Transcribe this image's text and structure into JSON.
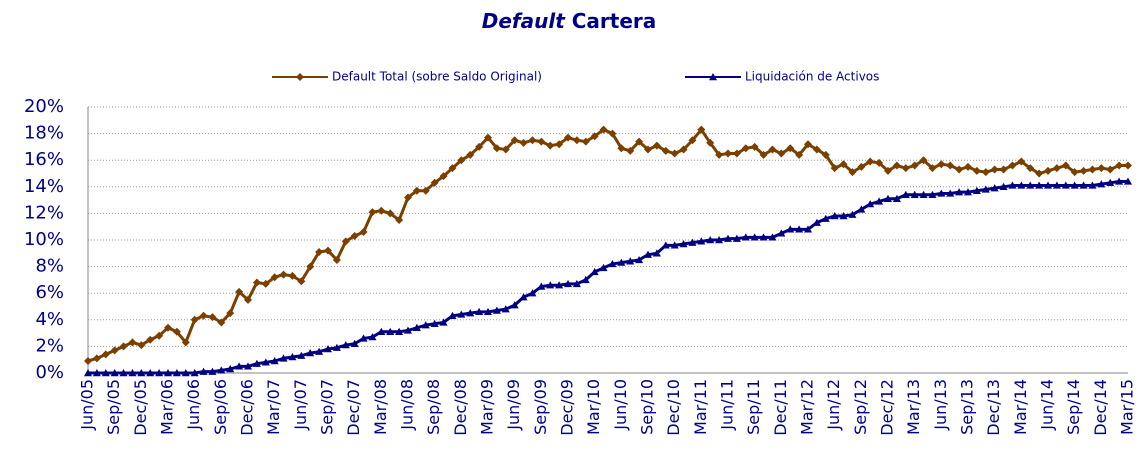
{
  "chart_data": {
    "type": "line",
    "title_prefix": "Default",
    "title": "Cartera",
    "categories": [
      "Jun/05",
      null,
      null,
      "Sep/05",
      null,
      null,
      "Dec/05",
      null,
      null,
      "Mar/06",
      null,
      null,
      "Jun/06",
      null,
      null,
      "Sep/06",
      null,
      null,
      "Dec/06",
      null,
      null,
      "Mar/07",
      null,
      null,
      "Jun/07",
      null,
      null,
      "Sep/07",
      null,
      null,
      "Dec/07",
      null,
      null,
      "Mar/08",
      null,
      null,
      "Jun/08",
      null,
      null,
      "Sep/08",
      null,
      null,
      "Dec/08",
      null,
      null,
      "Mar/09",
      null,
      null,
      "Jun/09",
      null,
      null,
      "Sep/09",
      null,
      null,
      "Dec/09",
      null,
      null,
      "Mar/10",
      null,
      null,
      "Jun/10",
      null,
      null,
      "Sep/10",
      null,
      null,
      "Dec/10",
      null,
      null,
      "Mar/11",
      null,
      null,
      "Jun/11",
      null,
      null,
      "Sep/11",
      null,
      null,
      "Dec/11",
      null,
      null,
      "Mar/12",
      null,
      null,
      "Jun/12",
      null,
      null,
      "Sep/12",
      null,
      null,
      "Dec/12",
      null,
      null,
      "Mar/13",
      null,
      null,
      "Jun/13",
      null,
      null,
      "Sep/13",
      null,
      null,
      "Dec/13",
      null,
      null,
      "Mar/14",
      null,
      null,
      "Jun/14",
      null,
      null,
      "Sep/14",
      null,
      null,
      "Dec/14",
      null,
      null,
      "Mar/15"
    ],
    "series": [
      {
        "name": "Default Total (sobre Saldo Original)",
        "color": "#7b3f00",
        "marker": "diamond",
        "values": [
          0.9,
          1.1,
          1.4,
          1.7,
          2.0,
          2.3,
          2.1,
          2.5,
          2.8,
          3.4,
          3.1,
          2.3,
          4.0,
          4.3,
          4.2,
          3.8,
          4.5,
          6.1,
          5.5,
          6.8,
          6.7,
          7.2,
          7.4,
          7.3,
          6.9,
          8.0,
          9.1,
          9.2,
          8.5,
          9.9,
          10.3,
          10.6,
          12.1,
          12.2,
          12.0,
          11.5,
          13.2,
          13.7,
          13.7,
          14.3,
          14.8,
          15.4,
          16.0,
          16.4,
          17.0,
          17.7,
          16.9,
          16.8,
          17.5,
          17.3,
          17.5,
          17.4,
          17.1,
          17.2,
          17.7,
          17.5,
          17.4,
          17.8,
          18.3,
          18.0,
          16.9,
          16.7,
          17.4,
          16.8,
          17.1,
          16.7,
          16.5,
          16.8,
          17.5,
          18.3,
          17.3,
          16.4,
          16.5,
          16.5,
          16.9,
          17.0,
          16.4,
          16.8,
          16.5,
          16.9,
          16.4,
          17.2,
          16.8,
          16.4,
          15.4,
          15.7,
          15.1,
          15.5,
          15.9,
          15.8,
          15.2,
          15.6,
          15.4,
          15.6,
          16.0,
          15.4,
          15.7,
          15.6,
          15.3,
          15.5,
          15.2,
          15.1,
          15.3,
          15.3,
          15.6,
          15.9,
          15.4,
          15.0,
          15.2,
          15.4,
          15.6,
          15.1,
          15.2,
          15.3,
          15.4,
          15.3,
          15.6,
          15.6
        ]
      },
      {
        "name": "Liquidación de Activos",
        "color": "#000080",
        "marker": "triangle",
        "values": [
          0,
          0,
          0,
          0,
          0,
          0,
          0,
          0,
          0,
          0,
          0,
          0,
          0,
          0.1,
          0.1,
          0.2,
          0.3,
          0.5,
          0.5,
          0.7,
          0.8,
          0.9,
          1.1,
          1.2,
          1.3,
          1.5,
          1.6,
          1.8,
          1.9,
          2.1,
          2.2,
          2.6,
          2.7,
          3.1,
          3.1,
          3.1,
          3.2,
          3.4,
          3.6,
          3.7,
          3.8,
          4.3,
          4.4,
          4.5,
          4.6,
          4.6,
          4.7,
          4.8,
          5.1,
          5.7,
          6.0,
          6.5,
          6.6,
          6.6,
          6.7,
          6.7,
          7.0,
          7.6,
          7.9,
          8.2,
          8.3,
          8.4,
          8.5,
          8.9,
          9.0,
          9.6,
          9.6,
          9.7,
          9.8,
          9.9,
          10.0,
          10.0,
          10.1,
          10.1,
          10.2,
          10.2,
          10.2,
          10.2,
          10.5,
          10.8,
          10.8,
          10.8,
          11.3,
          11.6,
          11.8,
          11.8,
          11.9,
          12.3,
          12.7,
          12.9,
          13.1,
          13.1,
          13.4,
          13.4,
          13.4,
          13.4,
          13.5,
          13.5,
          13.6,
          13.6,
          13.7,
          13.8,
          13.9,
          14.0,
          14.1,
          14.1,
          14.1,
          14.1,
          14.1,
          14.1,
          14.1,
          14.1,
          14.1,
          14.1,
          14.2,
          14.3,
          14.4,
          14.4
        ]
      }
    ],
    "ylim": [
      0,
      20
    ],
    "yticks": [
      {
        "value": 0,
        "label": "0%"
      },
      {
        "value": 2,
        "label": "2%"
      },
      {
        "value": 4,
        "label": "4%"
      },
      {
        "value": 6,
        "label": "6%"
      },
      {
        "value": 8,
        "label": "8%"
      },
      {
        "value": 10,
        "label": "10%"
      },
      {
        "value": 12,
        "label": "12%"
      },
      {
        "value": 14,
        "label": "14%"
      },
      {
        "value": 16,
        "label": "16%"
      },
      {
        "value": 18,
        "label": "18%"
      },
      {
        "value": 20,
        "label": "20%"
      }
    ],
    "grid": true,
    "legend": "top"
  }
}
